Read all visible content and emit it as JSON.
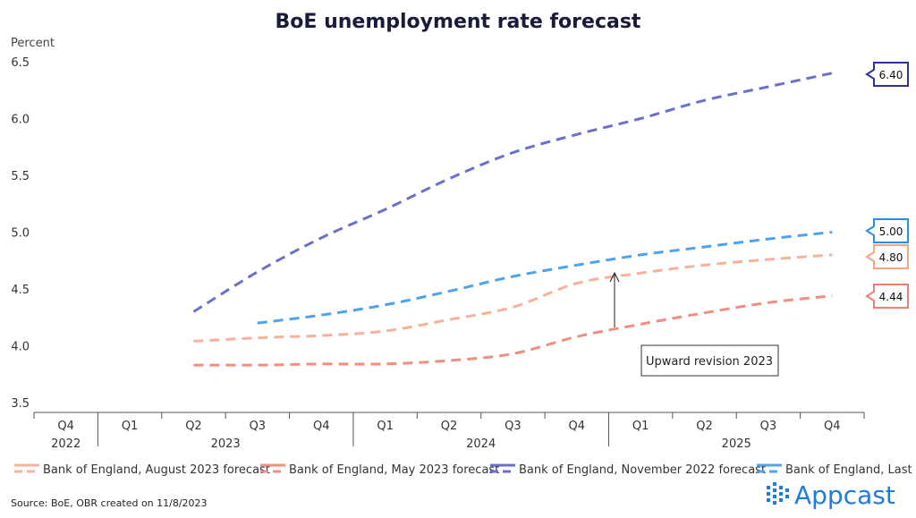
{
  "chart_data": {
    "type": "line",
    "title": "BoE unemployment rate forecast",
    "ylabel": "Percent",
    "xlabel": "",
    "ylim": [
      3.5,
      6.5
    ],
    "yticks": [
      "3.5",
      "4.0",
      "4.5",
      "5.0",
      "5.5",
      "6.0",
      "6.5"
    ],
    "categories": [
      "Q4",
      "Q1",
      "Q2",
      "Q3",
      "Q4",
      "Q1",
      "Q2",
      "Q3",
      "Q4",
      "Q1",
      "Q2",
      "Q3",
      "Q4"
    ],
    "years": [
      "2022",
      "2023",
      "2024",
      "2025"
    ],
    "grid": false,
    "legend": "bottom",
    "series": [
      {
        "name": "Bank of England, August 2023 forecast",
        "color": "#f7b29b",
        "style": "dashed",
        "values": [
          null,
          null,
          4.04,
          4.07,
          4.09,
          4.13,
          4.23,
          4.34,
          4.55,
          4.64,
          4.71,
          4.76,
          4.8
        ],
        "end_label": "4.80"
      },
      {
        "name": "Bank of England, May 2023 forecast",
        "color": "#f08e80",
        "style": "dashed",
        "values": [
          null,
          null,
          3.83,
          3.83,
          3.84,
          3.84,
          3.87,
          3.93,
          4.08,
          4.19,
          4.29,
          4.38,
          4.44
        ],
        "end_label": "4.44"
      },
      {
        "name": "Bank of England, November 2022 forecast",
        "color": "#6b70cf",
        "style": "dashed",
        "values": [
          null,
          null,
          4.3,
          4.65,
          4.95,
          5.2,
          5.47,
          5.7,
          5.86,
          6.0,
          6.16,
          6.28,
          6.4
        ],
        "end_label": "6.40"
      },
      {
        "name": "Bank of England, Last",
        "color": "#4ea3ea",
        "style": "dashed",
        "values": [
          null,
          null,
          null,
          4.2,
          4.27,
          4.36,
          4.48,
          4.61,
          4.71,
          4.8,
          4.87,
          4.94,
          5.0
        ],
        "end_label": "5.00"
      }
    ],
    "annotations": [
      {
        "text": "Upward revision 2023"
      }
    ]
  },
  "source": "Source: BoE, OBR created on 11/8/2023",
  "brand": "Appcast",
  "label_colors": {
    "Bank of England, August 2023 forecast": "#f4a585",
    "Bank of England, May 2023 forecast": "#ee7f70",
    "Bank of England, November 2022 forecast": "#2e3199",
    "Bank of England, Last": "#2a8de6"
  }
}
